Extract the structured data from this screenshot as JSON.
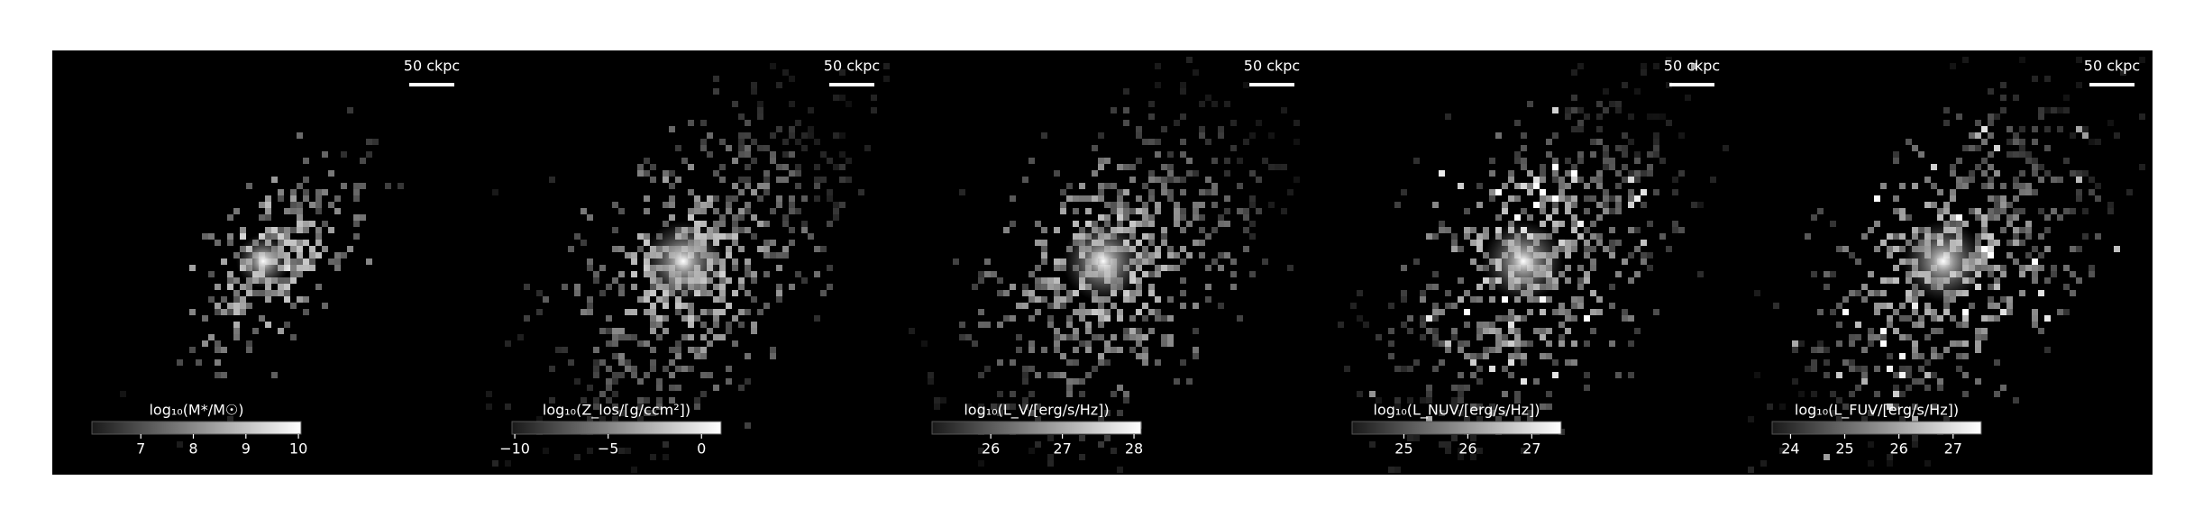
{
  "panels": [
    {
      "scale_label": "50 ckpc",
      "colorbar": {
        "label": "log₁₀(M*/M☉)",
        "lim": [
          6.07,
          10.05
        ],
        "ticks": [
          7,
          8,
          9,
          10
        ]
      }
    },
    {
      "scale_label": "50 ckpc",
      "colorbar": {
        "label": "log₁₀(Z_los/[g/ccm²])",
        "lim": [
          -10.15,
          1.05
        ],
        "ticks": [
          {
            "value": -10,
            "label": "−10"
          },
          {
            "value": -5,
            "label": "−5"
          },
          0
        ]
      }
    },
    {
      "scale_label": "50 ckpc",
      "colorbar": {
        "label": "log₁₀(L_V/[erg/s/Hz])",
        "lim": [
          25.18,
          28.1
        ],
        "ticks": [
          26,
          27,
          28
        ]
      }
    },
    {
      "scale_label": "50 ckpc",
      "colorbar": {
        "label": "log₁₀(L_NUV/[erg/s/Hz])",
        "lim": [
          24.19,
          27.46
        ],
        "ticks": [
          25,
          26,
          27
        ]
      }
    },
    {
      "scale_label": "50 ckpc",
      "colorbar": {
        "label": "log₁₀(L_FUV/[erg/s/Hz])",
        "lim": [
          23.66,
          27.52
        ],
        "ticks": [
          24,
          25,
          26,
          27
        ]
      }
    }
  ]
}
